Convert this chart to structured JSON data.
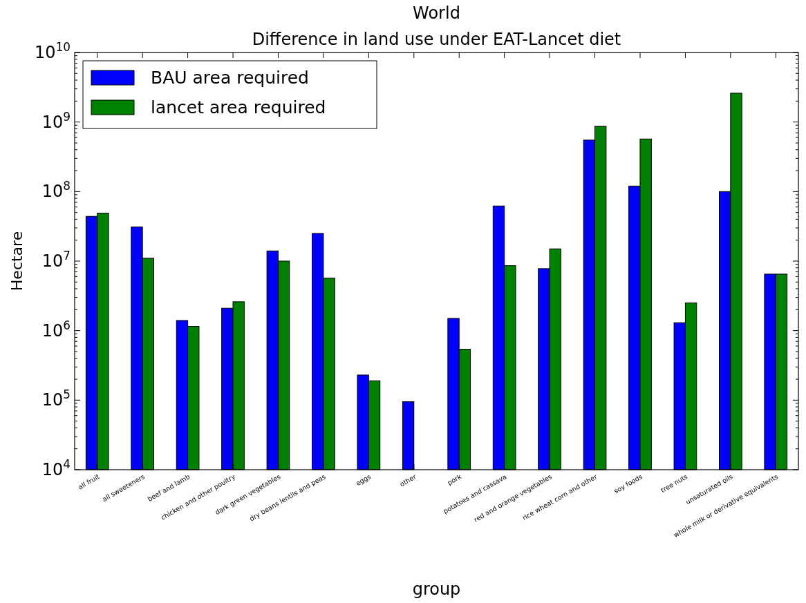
{
  "chart_data": {
    "type": "bar",
    "title": "World\nDifference in land use under EAT-Lancet diet",
    "xlabel": "group",
    "ylabel": "Hectare",
    "categories": [
      "all fruit",
      "all sweeteners",
      "beef and lamb",
      "chicken and other poultry",
      "dark green vegetables",
      "dry beans lentils and peas",
      "eggs",
      "other",
      "pork",
      "potatoes and cassava",
      "red and orange vegetables",
      "rice wheat corn and other",
      "soy foods",
      "tree nuts",
      "unsaturated oils",
      "whole milk or derivative equivalents"
    ],
    "series": [
      {
        "name": "BAU area required",
        "color": "#0000ff",
        "values": [
          44000000,
          31000000,
          1400000,
          2100000,
          14000000,
          25000000,
          230000,
          95000,
          1500000,
          62000000,
          7800000,
          550000000,
          120000000,
          1300000,
          100000000,
          6500000
        ]
      },
      {
        "name": "lancet area required",
        "color": "#008000",
        "values": [
          49000000,
          11000000,
          1150000,
          2600000,
          10000000,
          5700000,
          190000,
          null,
          540000,
          8600000,
          15000000,
          870000000,
          570000000,
          2500000,
          2600000000,
          6500000
        ]
      }
    ],
    "log": true,
    "ylim": [
      10000,
      10000000000
    ],
    "yticks": [
      {
        "value": 10000,
        "label": "10$^{4}$"
      },
      {
        "value": 20000,
        "label": null
      },
      {
        "value": 30000,
        "label": null
      },
      {
        "value": 40000,
        "label": null
      },
      {
        "value": 50000,
        "label": null
      },
      {
        "value": 60000,
        "label": null
      },
      {
        "value": 70000,
        "label": null
      },
      {
        "value": 80000,
        "label": null
      },
      {
        "value": 90000,
        "label": null
      },
      {
        "value": 100000,
        "label": "10$^{5}$"
      },
      {
        "value": 200000,
        "label": null
      },
      {
        "value": 300000,
        "label": null
      },
      {
        "value": 400000,
        "label": null
      },
      {
        "value": 500000,
        "label": null
      },
      {
        "value": 600000,
        "label": null
      },
      {
        "value": 700000,
        "label": null
      },
      {
        "value": 800000,
        "label": null
      },
      {
        "value": 900000,
        "label": null
      },
      {
        "value": 1000000,
        "label": "10$^{6}$"
      },
      {
        "value": 2000000,
        "label": null
      },
      {
        "value": 3000000,
        "label": null
      },
      {
        "value": 4000000,
        "label": null
      },
      {
        "value": 5000000,
        "label": null
      },
      {
        "value": 6000000,
        "label": null
      },
      {
        "value": 7000000,
        "label": null
      },
      {
        "value": 8000000,
        "label": null
      },
      {
        "value": 9000000,
        "label": null
      },
      {
        "value": 10000000,
        "label": "10$^{7}$"
      },
      {
        "value": 20000000,
        "label": null
      },
      {
        "value": 30000000,
        "label": null
      },
      {
        "value": 40000000,
        "label": null
      },
      {
        "value": 50000000,
        "label": null
      },
      {
        "value": 60000000,
        "label": null
      },
      {
        "value": 70000000,
        "label": null
      },
      {
        "value": 80000000,
        "label": null
      },
      {
        "value": 90000000,
        "label": null
      },
      {
        "value": 100000000,
        "label": "10$^{8}$"
      },
      {
        "value": 200000000,
        "label": null
      },
      {
        "value": 300000000,
        "label": null
      },
      {
        "value": 400000000,
        "label": null
      },
      {
        "value": 500000000,
        "label": null
      },
      {
        "value": 600000000,
        "label": null
      },
      {
        "value": 700000000,
        "label": null
      },
      {
        "value": 800000000,
        "label": null
      },
      {
        "value": 900000000,
        "label": null
      },
      {
        "value": 1000000000,
        "label": "10$^{9}$"
      },
      {
        "value": 2000000000,
        "label": null
      },
      {
        "value": 3000000000,
        "label": null
      },
      {
        "value": 4000000000,
        "label": null
      },
      {
        "value": 5000000000,
        "label": null
      },
      {
        "value": 6000000000,
        "label": null
      },
      {
        "value": 7000000000,
        "label": null
      },
      {
        "value": 8000000000,
        "label": null
      },
      {
        "value": 9000000000,
        "label": null
      },
      {
        "value": 10000000000,
        "label": "10$^{10}$"
      }
    ],
    "grid": false,
    "legend": "top left"
  }
}
